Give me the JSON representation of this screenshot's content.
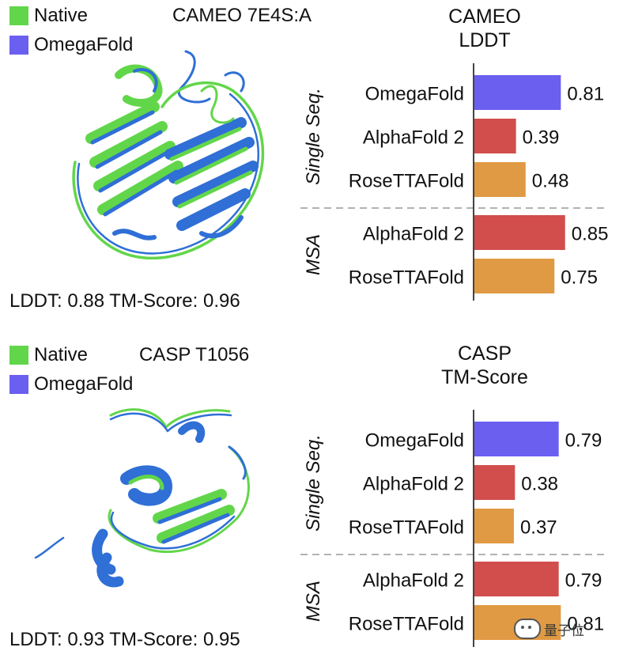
{
  "panels": [
    {
      "legend": {
        "native": "Native",
        "omega": "OmegaFold"
      },
      "structure_title": "CAMEO 7E4S:A",
      "scores": "LDDT: 0.88   TM-Score: 0.96"
    },
    {
      "legend": {
        "native": "Native",
        "omega": "OmegaFold"
      },
      "structure_title": "CASP T1056",
      "scores": "LDDT: 0.93   TM-Score: 0.95"
    }
  ],
  "colors": {
    "native": "#62d64a",
    "omegafold": "#6b5ff0",
    "alphafold": "#d14e4c",
    "rosettafold": "#e09a43",
    "protein_blue": "#2f6fd6"
  },
  "chart_data": [
    {
      "type": "bar",
      "orientation": "horizontal",
      "title": "CAMEO\nLDDT",
      "groups": [
        {
          "label": "Single Seq.",
          "categories": [
            "OmegaFold",
            "AlphaFold 2",
            "RoseTTAFold"
          ],
          "values": [
            0.81,
            0.39,
            0.48
          ]
        },
        {
          "label": "MSA",
          "categories": [
            "AlphaFold 2",
            "RoseTTAFold"
          ],
          "values": [
            0.85,
            0.75
          ]
        }
      ],
      "value_labels": [
        "0.81",
        "0.39",
        "0.48",
        "0.85",
        "0.75"
      ],
      "bar_colors": [
        "#6b5ff0",
        "#d14e4c",
        "#e09a43",
        "#d14e4c",
        "#e09a43"
      ],
      "xlim": [
        0,
        1
      ]
    },
    {
      "type": "bar",
      "orientation": "horizontal",
      "title": "CASP\nTM-Score",
      "groups": [
        {
          "label": "Single Seq.",
          "categories": [
            "OmegaFold",
            "AlphaFold 2",
            "RoseTTAFold"
          ],
          "values": [
            0.79,
            0.38,
            0.37
          ]
        },
        {
          "label": "MSA",
          "categories": [
            "AlphaFold 2",
            "RoseTTAFold"
          ],
          "values": [
            0.79,
            0.81
          ]
        }
      ],
      "value_labels": [
        "0.79",
        "0.38",
        "0.37",
        "0.79",
        "0.81"
      ],
      "bar_colors": [
        "#6b5ff0",
        "#d14e4c",
        "#e09a43",
        "#d14e4c",
        "#e09a43"
      ],
      "xlim": [
        0,
        1
      ]
    }
  ],
  "watermark": "量子位"
}
